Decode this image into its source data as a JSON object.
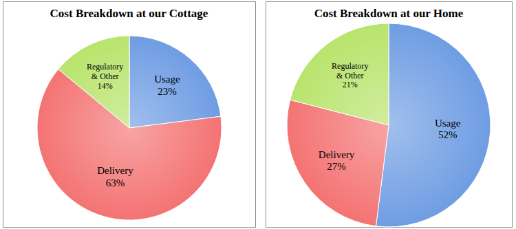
{
  "chart_data": [
    {
      "type": "pie",
      "title": "Cost Breakdown at our Cottage",
      "categories": [
        "Usage",
        "Delivery",
        "Regulatory & Other"
      ],
      "values": [
        23,
        63,
        14
      ],
      "value_labels": [
        "23%",
        "63%",
        "14%"
      ],
      "colors": [
        "#6f9de3",
        "#f47373",
        "#b8e46c"
      ],
      "data_labels": true
    },
    {
      "type": "pie",
      "title": "Cost Breakdown at our Home",
      "categories": [
        "Usage",
        "Delivery",
        "Regulatory & Other"
      ],
      "values": [
        52,
        27,
        21
      ],
      "value_labels": [
        "52%",
        "27%",
        "21%"
      ],
      "colors": [
        "#6f9de3",
        "#f47373",
        "#b8e46c"
      ],
      "data_labels": true
    }
  ]
}
